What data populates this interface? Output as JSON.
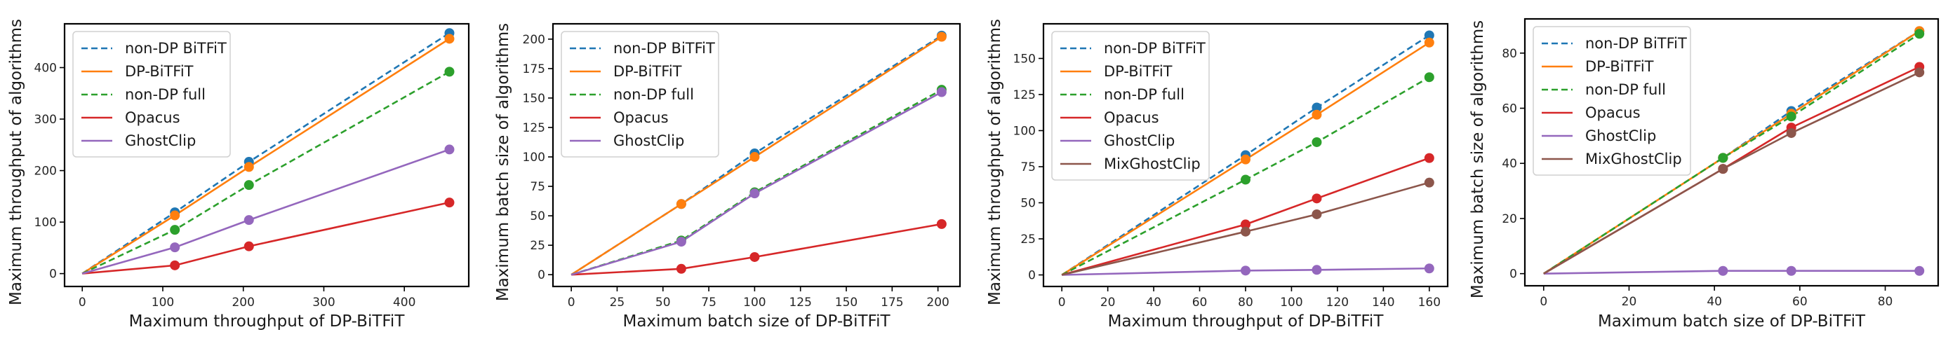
{
  "chart_data": [
    {
      "type": "line",
      "title": "",
      "xlabel": "Maximum throughput of DP-BiTFiT",
      "ylabel": "Maximum throughput of algorithms",
      "xlim": [
        -22,
        480
      ],
      "ylim": [
        -25,
        485
      ],
      "xticks": [
        0,
        100,
        200,
        300,
        400
      ],
      "yticks": [
        0,
        100,
        200,
        300,
        400
      ],
      "grid": false,
      "legend_position": "upper-left",
      "x": [
        0,
        115,
        207,
        456
      ],
      "series": [
        {
          "name": "non-DP BiTFiT",
          "color": "#1f77b4",
          "dashed": true,
          "values": [
            0,
            119,
            217,
            467
          ]
        },
        {
          "name": "DP-BiTFiT",
          "color": "#ff7f0e",
          "dashed": false,
          "values": [
            0,
            113,
            207,
            456
          ]
        },
        {
          "name": "non-DP full",
          "color": "#2ca02c",
          "dashed": true,
          "values": [
            0,
            85,
            172,
            392
          ]
        },
        {
          "name": "Opacus",
          "color": "#d62728",
          "dashed": false,
          "values": [
            0,
            16,
            53,
            138
          ]
        },
        {
          "name": "GhostClip",
          "color": "#9467bd",
          "dashed": false,
          "values": [
            0,
            51,
            104,
            241
          ]
        }
      ]
    },
    {
      "type": "line",
      "title": "",
      "xlabel": "Maximum batch size of DP-BiTFiT",
      "ylabel": "Maximum batch size of algorithms",
      "xlim": [
        -10,
        212
      ],
      "ylim": [
        -10,
        213
      ],
      "xticks": [
        0,
        25,
        50,
        75,
        100,
        125,
        150,
        175,
        200
      ],
      "yticks": [
        0,
        25,
        50,
        75,
        100,
        125,
        150,
        175,
        200
      ],
      "grid": false,
      "legend_position": "upper-left",
      "x": [
        0,
        60,
        100,
        202
      ],
      "series": [
        {
          "name": "non-DP BiTFiT",
          "color": "#1f77b4",
          "dashed": true,
          "values": [
            0,
            60,
            103,
            203
          ]
        },
        {
          "name": "DP-BiTFiT",
          "color": "#ff7f0e",
          "dashed": false,
          "values": [
            0,
            60,
            100,
            202
          ]
        },
        {
          "name": "non-DP full",
          "color": "#2ca02c",
          "dashed": true,
          "values": [
            0,
            29,
            70,
            157
          ]
        },
        {
          "name": "Opacus",
          "color": "#d62728",
          "dashed": false,
          "values": [
            0,
            5,
            15,
            43
          ]
        },
        {
          "name": "GhostClip",
          "color": "#9467bd",
          "dashed": false,
          "values": [
            0,
            28,
            69,
            155
          ]
        }
      ]
    },
    {
      "type": "line",
      "title": "",
      "xlabel": "Maximum throughput of DP-BiTFiT",
      "ylabel": "Maximum throughput of algorithms",
      "xlim": [
        -8,
        168
      ],
      "ylim": [
        -8,
        174
      ],
      "xticks": [
        0,
        20,
        40,
        60,
        80,
        100,
        120,
        140,
        160
      ],
      "yticks": [
        0,
        25,
        50,
        75,
        100,
        125,
        150
      ],
      "grid": false,
      "legend_position": "upper-left",
      "x": [
        0,
        80,
        111,
        160
      ],
      "series": [
        {
          "name": "non-DP BiTFiT",
          "color": "#1f77b4",
          "dashed": true,
          "values": [
            0,
            83,
            116,
            166
          ]
        },
        {
          "name": "DP-BiTFiT",
          "color": "#ff7f0e",
          "dashed": false,
          "values": [
            0,
            80,
            111,
            161
          ]
        },
        {
          "name": "non-DP full",
          "color": "#2ca02c",
          "dashed": true,
          "values": [
            0,
            66,
            92,
            137
          ]
        },
        {
          "name": "Opacus",
          "color": "#d62728",
          "dashed": false,
          "values": [
            0,
            35,
            53,
            81
          ]
        },
        {
          "name": "GhostClip",
          "color": "#9467bd",
          "dashed": false,
          "values": [
            0,
            3,
            3.5,
            4.5
          ]
        },
        {
          "name": "MixGhostClip",
          "color": "#8c564b",
          "dashed": false,
          "values": [
            0,
            30,
            42,
            64
          ]
        }
      ]
    },
    {
      "type": "line",
      "title": "",
      "xlabel": "Maximum batch size of DP-BiTFiT",
      "ylabel": "Maximum batch size of algorithms",
      "xlim": [
        -4.4,
        92.4
      ],
      "ylim": [
        -4.4,
        92.4
      ],
      "xticks": [
        0,
        20,
        40,
        60,
        80
      ],
      "yticks": [
        0,
        20,
        40,
        60,
        80
      ],
      "grid": false,
      "legend_position": "upper-left",
      "x": [
        0,
        42,
        58,
        88
      ],
      "series": [
        {
          "name": "non-DP BiTFiT",
          "color": "#1f77b4",
          "dashed": true,
          "values": [
            0,
            42,
            59,
            88
          ]
        },
        {
          "name": "DP-BiTFiT",
          "color": "#ff7f0e",
          "dashed": false,
          "values": [
            0,
            42,
            58,
            88
          ]
        },
        {
          "name": "non-DP full",
          "color": "#2ca02c",
          "dashed": true,
          "values": [
            0,
            42,
            57,
            87
          ]
        },
        {
          "name": "Opacus",
          "color": "#d62728",
          "dashed": false,
          "values": [
            0,
            38,
            53,
            75
          ]
        },
        {
          "name": "GhostClip",
          "color": "#9467bd",
          "dashed": false,
          "values": [
            0,
            1,
            1,
            1
          ]
        },
        {
          "name": "MixGhostClip",
          "color": "#8c564b",
          "dashed": false,
          "values": [
            0,
            38,
            51,
            73
          ]
        }
      ]
    }
  ]
}
